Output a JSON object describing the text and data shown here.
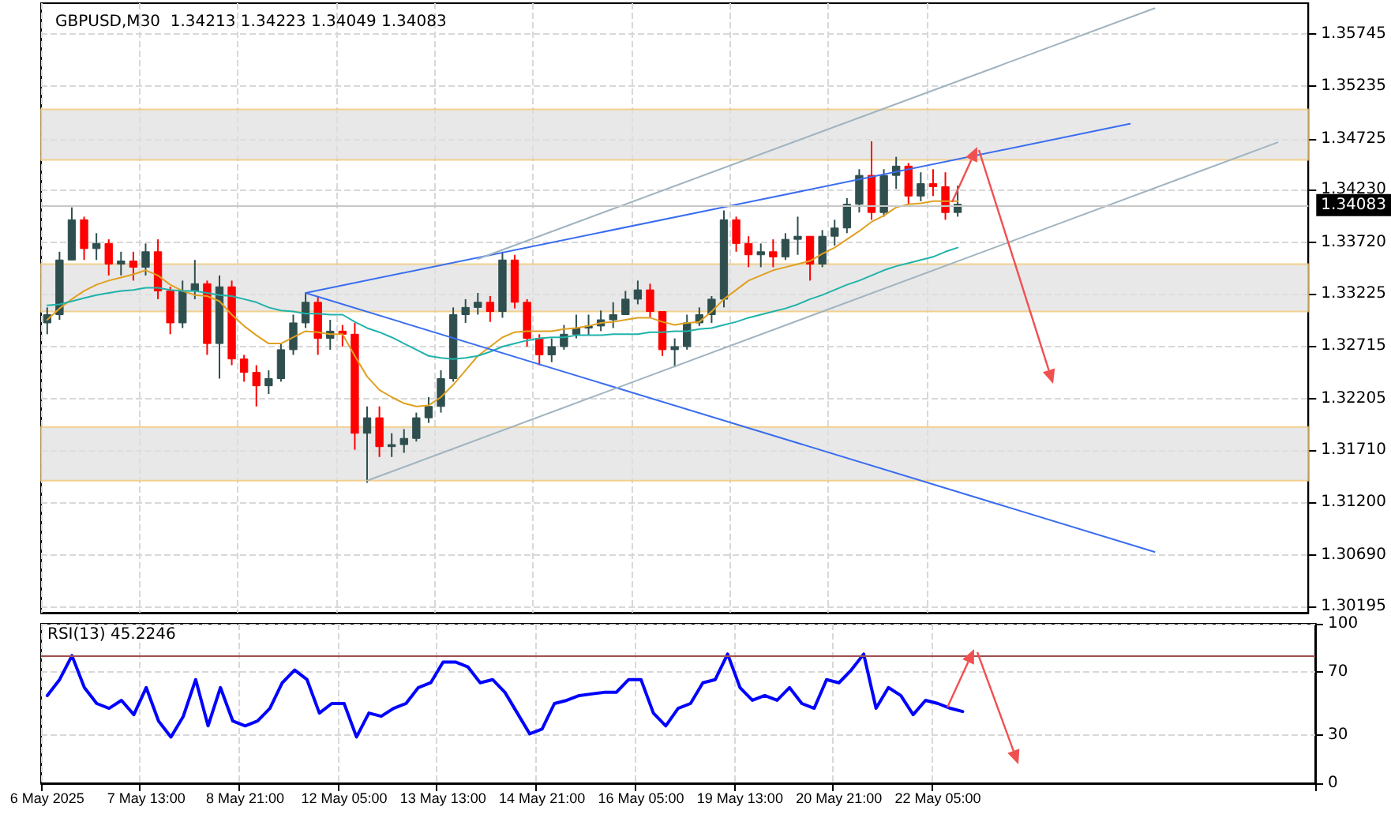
{
  "chart_data": [
    {
      "type": "candlestick",
      "title": "GBPUSD,M30  1.34213 1.34223 1.34049 1.34083",
      "tick_labels": "y",
      "grid": true,
      "marker": "none",
      "line_style": "solid",
      "categories": [
        null,
        null,
        null,
        null,
        null,
        null,
        null,
        null,
        null,
        null,
        null,
        null,
        null,
        null,
        null,
        null,
        null,
        null,
        null,
        null,
        null,
        null,
        null,
        null,
        null,
        null,
        null,
        null,
        null,
        null,
        null,
        null,
        null,
        null,
        null,
        null,
        null,
        null,
        null,
        null,
        null,
        null,
        null,
        null,
        null,
        null,
        null,
        null,
        null,
        null,
        null,
        null,
        null,
        null,
        null,
        null,
        null,
        null,
        null,
        null,
        null,
        null,
        null,
        null,
        null,
        null,
        null,
        null,
        null,
        null,
        null,
        null,
        null,
        null,
        null,
        null,
        null,
        null,
        null,
        null,
        null,
        null,
        null,
        null,
        null,
        null,
        null,
        null,
        null,
        null,
        null,
        null,
        null,
        null,
        null,
        null,
        null,
        null,
        null,
        null,
        null,
        null,
        null
      ],
      "ylim": [
        1.3013,
        1.3604
      ],
      "yticks": [
        1.30195,
        {
          "value": 1.3069,
          "label": "1.30690"
        },
        {
          "value": 1.312,
          "label": "1.31200"
        },
        {
          "value": 1.3171,
          "label": "1.31710"
        },
        1.32205,
        1.32715,
        1.33225,
        {
          "value": 1.3372,
          "label": "1.33720"
        },
        {
          "value": 1.3423,
          "label": "1.34230"
        },
        1.34725,
        1.35235,
        1.35745
      ],
      "series": [
        {
          "type": "candlestick",
          "colors": [
            "#2f4f4f",
            "#2f4f4f",
            "#2f4f4f",
            "#ff0000",
            "#2f4f4f",
            "#ff0000",
            "#2f4f4f",
            "#ff0000",
            "#2f4f4f",
            "#ff0000",
            "#ff0000",
            "#2f4f4f",
            "#2f4f4f",
            "#ff0000",
            "#2f4f4f",
            "#ff0000",
            "#ff0000",
            "#ff0000",
            "#2f4f4f",
            "#2f4f4f",
            "#2f4f4f",
            "#2f4f4f",
            "#ff0000",
            "#2f4f4f",
            "#ff0000",
            "#ff0000",
            "#2f4f4f",
            "#ff0000",
            "#2f4f4f",
            "#2f4f4f",
            "#2f4f4f",
            "#2f4f4f",
            "#2f4f4f",
            "#2f4f4f",
            "#2f4f4f",
            "#2f4f4f",
            "#ff0000",
            "#2f4f4f",
            "#ff0000",
            "#ff0000",
            "#ff0000",
            "#2f4f4f",
            "#2f4f4f",
            "#2f4f4f",
            "#2f4f4f",
            "#2f4f4f",
            "#2f4f4f",
            "#2f4f4f",
            "#2f4f4f",
            "#ff0000",
            "#ff0000",
            "#2f4f4f",
            "#2f4f4f",
            "#2f4f4f",
            "#2f4f4f",
            "#2f4f4f",
            "#ff0000",
            "#ff0000",
            "#2f4f4f",
            "#ff0000",
            "#2f4f4f",
            "#2f4f4f",
            "#ff0000",
            "#2f4f4f",
            "#2f4f4f",
            "#2f4f4f",
            "#2f4f4f",
            "#ff0000",
            "#2f4f4f",
            "#2f4f4f",
            "#ff0000",
            "#2f4f4f",
            "#ff0000",
            "#ff0000",
            "#2f4f4f",
            null,
            null,
            null,
            null,
            null,
            null,
            null,
            null,
            null,
            null,
            null,
            null,
            null,
            null,
            null,
            null,
            null,
            null,
            null,
            null,
            null,
            null,
            null,
            null,
            null,
            null,
            null,
            null
          ],
          "ohlc": [
            [
              1.3294,
              1.3309,
              1.3283,
              1.3302
            ],
            [
              1.3302,
              1.3363,
              1.3297,
              1.3355
            ],
            [
              1.3355,
              1.3406,
              1.3355,
              1.3394
            ],
            [
              1.3394,
              1.3397,
              1.3355,
              1.3366
            ],
            [
              1.3366,
              1.3381,
              1.3355,
              1.3371
            ],
            [
              1.3371,
              1.3375,
              1.334,
              1.3351
            ],
            [
              1.3351,
              1.3363,
              1.334,
              1.3354
            ],
            [
              1.3354,
              1.3363,
              1.3335,
              1.3348
            ],
            [
              1.3348,
              1.3371,
              1.334,
              1.3363
            ],
            [
              1.3363,
              1.3375,
              1.3317,
              1.3325
            ],
            [
              1.3325,
              1.3329,
              1.3283,
              1.3294
            ],
            [
              1.3294,
              1.3335,
              1.3289,
              1.3325
            ],
            [
              1.3325,
              1.3355,
              1.3317,
              1.3332
            ],
            [
              1.3332,
              1.3335,
              1.3263,
              1.3274
            ],
            [
              1.3274,
              1.334,
              1.324,
              1.3329
            ],
            [
              1.3329,
              1.3335,
              1.3253,
              1.3259
            ],
            [
              1.3259,
              1.3263,
              1.3237,
              1.3246
            ],
            [
              1.3246,
              1.3253,
              1.3213,
              1.3233
            ],
            [
              1.3233,
              1.3248,
              1.3225,
              1.324
            ],
            [
              1.324,
              1.3274,
              1.3237,
              1.3268
            ],
            [
              1.3268,
              1.3302,
              1.3263,
              1.3294
            ],
            [
              1.3294,
              1.3323,
              1.3289,
              1.3314
            ],
            [
              1.3314,
              1.332,
              1.3263,
              1.3279
            ],
            [
              1.3279,
              1.3297,
              1.3268,
              1.3286
            ],
            [
              1.3286,
              1.3292,
              1.3271,
              1.3283
            ],
            [
              1.3283,
              1.3294,
              1.3171,
              1.3187
            ],
            [
              1.3187,
              1.3213,
              1.3139,
              1.3202
            ],
            [
              1.3202,
              1.3213,
              1.3164,
              1.3174
            ],
            [
              1.3174,
              1.3187,
              1.3164,
              1.3176
            ],
            [
              1.3176,
              1.3191,
              1.3168,
              1.3182
            ],
            [
              1.3182,
              1.3207,
              1.3179,
              1.3202
            ],
            [
              1.3202,
              1.3222,
              1.3197,
              1.3213
            ],
            [
              1.3213,
              1.3248,
              1.3207,
              1.324
            ],
            [
              1.324,
              1.3309,
              1.3237,
              1.3302
            ],
            [
              1.3302,
              1.3317,
              1.3294,
              1.3309
            ],
            [
              1.3309,
              1.3323,
              1.3302,
              1.3314
            ],
            [
              1.3314,
              1.332,
              1.3295,
              1.3305
            ],
            [
              1.3305,
              1.3363,
              1.3299,
              1.3355
            ],
            [
              1.3355,
              1.336,
              1.3308,
              1.3314
            ],
            [
              1.3314,
              1.3317,
              1.3271,
              1.3279
            ],
            [
              1.3279,
              1.3283,
              1.3253,
              1.3263
            ],
            [
              1.3263,
              1.3279,
              1.3256,
              1.3271
            ],
            [
              1.3271,
              1.3292,
              1.3268,
              1.3283
            ],
            [
              1.3283,
              1.3302,
              1.3279,
              1.3289
            ],
            [
              1.3289,
              1.3302,
              1.3282,
              1.3291
            ],
            [
              1.3291,
              1.3306,
              1.3286,
              1.3297
            ],
            [
              1.3297,
              1.3314,
              1.3289,
              1.3302
            ],
            [
              1.3302,
              1.3325,
              1.3302,
              1.3317
            ],
            [
              1.3317,
              1.3335,
              1.3312,
              1.3326
            ],
            [
              1.3326,
              1.3332,
              1.3299,
              1.3305
            ],
            [
              1.3305,
              1.3305,
              1.3262,
              1.3268
            ],
            [
              1.3268,
              1.3279,
              1.3251,
              1.3271
            ],
            [
              1.3271,
              1.3302,
              1.3268,
              1.3294
            ],
            [
              1.3294,
              1.3309,
              1.3291,
              1.3302
            ],
            [
              1.3302,
              1.332,
              1.3294,
              1.3317
            ],
            [
              1.3317,
              1.3403,
              1.3309,
              1.3394
            ],
            [
              1.3394,
              1.3397,
              1.3363,
              1.3371
            ],
            [
              1.3371,
              1.3378,
              1.3348,
              1.336
            ],
            [
              1.336,
              1.3371,
              1.3348,
              1.3363
            ],
            [
              1.3363,
              1.3375,
              1.3348,
              1.3358
            ],
            [
              1.3358,
              1.3381,
              1.3355,
              1.3375
            ],
            [
              1.3375,
              1.3397,
              1.336,
              1.3378
            ],
            [
              1.3378,
              1.3378,
              1.3335,
              1.3351
            ],
            [
              1.3351,
              1.3384,
              1.3348,
              1.3378
            ],
            [
              1.3378,
              1.3394,
              1.3369,
              1.3386
            ],
            [
              1.3386,
              1.3415,
              1.3381,
              1.3409
            ],
            [
              1.3409,
              1.3443,
              1.3401,
              1.3437
            ],
            [
              1.3437,
              1.347,
              1.3394,
              1.3401
            ],
            [
              1.3401,
              1.3443,
              1.3397,
              1.3437
            ],
            [
              1.3437,
              1.3455,
              1.3424,
              1.3446
            ],
            [
              1.3446,
              1.3449,
              1.3409,
              1.3417
            ],
            [
              1.3417,
              1.344,
              1.3412,
              1.3429
            ],
            [
              1.3429,
              1.3443,
              1.3417,
              1.3426
            ],
            [
              1.3426,
              1.344,
              1.3394,
              1.3401
            ],
            [
              1.3401,
              1.3427,
              1.3397,
              1.3409
            ],
            null,
            null,
            null,
            null,
            null,
            null,
            null,
            null,
            null,
            null,
            null,
            null,
            null,
            null,
            null,
            null,
            null,
            null,
            null,
            null,
            null,
            null,
            null,
            null,
            null,
            null,
            null,
            null
          ]
        },
        {
          "type": "line",
          "color": "#e0a020",
          "values": [
            1.3297,
            1.3308,
            1.3317,
            1.3325,
            1.3331,
            1.3335,
            1.3338,
            1.3341,
            1.3345,
            1.334,
            1.3331,
            1.3325,
            1.3321,
            1.332,
            1.3315,
            1.3302,
            1.3291,
            1.3282,
            1.3274,
            1.3274,
            1.328,
            1.3286,
            1.3285,
            1.3283,
            1.3283,
            1.3262,
            1.3242,
            1.3229,
            1.3222,
            1.3216,
            1.3213,
            1.3214,
            1.3222,
            1.3234,
            1.3248,
            1.3262,
            1.3271,
            1.328,
            1.3285,
            1.3286,
            1.3286,
            1.3286,
            1.3288,
            1.3289,
            1.3291,
            1.3294,
            1.3295,
            1.3297,
            1.3299,
            1.3299,
            1.3295,
            1.3292,
            1.3294,
            1.3295,
            1.3305,
            1.3317,
            1.3326,
            1.3335,
            1.334,
            1.3345,
            1.3348,
            1.3351,
            1.3354,
            1.3361,
            1.3367,
            1.3375,
            1.3383,
            1.3392,
            1.3398,
            1.3406,
            1.3409,
            1.341,
            1.3412,
            1.3412,
            1.3412,
            null,
            null,
            null,
            null,
            null,
            null,
            null,
            null,
            null,
            null,
            null,
            null,
            null,
            null,
            null,
            null,
            null,
            null,
            null,
            null,
            null,
            null,
            null,
            null,
            null,
            null,
            null,
            null
          ]
        },
        {
          "type": "line",
          "color": "#20b2aa",
          "values": [
            1.3311,
            1.3312,
            1.3315,
            1.3318,
            1.3321,
            1.3323,
            1.3325,
            1.3326,
            1.3328,
            1.3328,
            1.3326,
            1.3325,
            1.3325,
            1.3323,
            1.3321,
            1.332,
            1.3317,
            1.3314,
            1.3309,
            1.3306,
            1.3305,
            1.3303,
            1.3303,
            1.3302,
            1.3302,
            1.3295,
            1.3289,
            1.3285,
            1.328,
            1.3274,
            1.3268,
            1.3262,
            1.326,
            1.3259,
            1.326,
            1.3262,
            1.3266,
            1.3271,
            1.3274,
            1.3277,
            1.3279,
            1.328,
            1.328,
            1.3282,
            1.3282,
            1.3282,
            1.3283,
            1.3283,
            1.3283,
            1.3285,
            1.3285,
            1.3286,
            1.3286,
            1.3288,
            1.3289,
            1.3292,
            1.3295,
            1.3299,
            1.3302,
            1.3305,
            1.3308,
            1.3312,
            1.3317,
            1.3321,
            1.3326,
            1.3331,
            1.3335,
            1.334,
            1.3345,
            1.3349,
            1.3352,
            1.3355,
            1.3358,
            1.3363,
            1.3367,
            null,
            null,
            null,
            null,
            null,
            null,
            null,
            null,
            null,
            null,
            null,
            null,
            null,
            null,
            null,
            null,
            null,
            null,
            null,
            null,
            null,
            null,
            null,
            null,
            null,
            null,
            null,
            null
          ]
        },
        {
          "type": "line",
          "color": "#3a6df0",
          "values": [
            null,
            null,
            null,
            null,
            null,
            null,
            null,
            null,
            null,
            null,
            null,
            null,
            null,
            null,
            null,
            null,
            null,
            null,
            null,
            null,
            null,
            1.3323,
            null,
            null,
            null,
            null,
            null,
            null,
            null,
            null,
            null,
            null,
            null,
            null,
            null,
            null,
            null,
            null,
            null,
            null,
            null,
            null,
            null,
            null,
            null,
            null,
            null,
            null,
            null,
            null,
            null,
            null,
            null,
            null,
            null,
            null,
            null,
            null,
            null,
            null,
            null,
            null,
            null,
            null,
            null,
            null,
            null,
            null,
            null,
            null,
            null,
            null,
            null,
            null,
            null,
            null,
            null,
            null,
            null,
            null,
            null,
            null,
            null,
            null,
            null,
            null,
            null,
            null,
            1.3487,
            null,
            null,
            null,
            null,
            null,
            null,
            null,
            null,
            null,
            null,
            null,
            null,
            null,
            null
          ]
        },
        {
          "type": "line",
          "color": "#3a6df0",
          "values": [
            null,
            null,
            null,
            null,
            null,
            null,
            null,
            null,
            null,
            null,
            null,
            null,
            null,
            null,
            null,
            null,
            null,
            null,
            null,
            null,
            null,
            1.3323,
            null,
            null,
            null,
            null,
            null,
            null,
            null,
            null,
            null,
            null,
            null,
            null,
            null,
            null,
            null,
            null,
            null,
            null,
            null,
            null,
            null,
            null,
            null,
            null,
            null,
            null,
            null,
            null,
            null,
            null,
            null,
            null,
            null,
            null,
            null,
            null,
            null,
            null,
            null,
            null,
            null,
            null,
            null,
            null,
            null,
            null,
            null,
            null,
            null,
            null,
            null,
            null,
            null,
            null,
            null,
            null,
            null,
            null,
            null,
            null,
            null,
            null,
            null,
            null,
            null,
            null,
            null,
            null,
            1.3072,
            null,
            null,
            null,
            null,
            null,
            null,
            null,
            null,
            null,
            null,
            null,
            null
          ]
        },
        {
          "type": "line",
          "color": "#a0b4c0",
          "values": [
            null,
            null,
            null,
            null,
            null,
            null,
            null,
            null,
            null,
            null,
            null,
            null,
            null,
            null,
            null,
            null,
            null,
            null,
            null,
            null,
            null,
            null,
            null,
            null,
            null,
            null,
            null,
            null,
            null,
            null,
            null,
            null,
            null,
            null,
            null,
            1.3356,
            null,
            null,
            null,
            null,
            null,
            null,
            null,
            null,
            null,
            null,
            null,
            null,
            null,
            null,
            null,
            null,
            null,
            null,
            null,
            null,
            null,
            null,
            null,
            null,
            null,
            null,
            null,
            null,
            null,
            null,
            null,
            null,
            null,
            null,
            null,
            null,
            null,
            null,
            null,
            null,
            null,
            null,
            null,
            null,
            null,
            null,
            null,
            null,
            null,
            null,
            null,
            null,
            null,
            null,
            1.3599,
            null,
            null,
            null,
            null,
            null,
            null,
            null,
            null,
            null,
            null,
            null,
            null
          ]
        },
        {
          "type": "line",
          "color": "#a0b4c0",
          "values": [
            null,
            null,
            null,
            null,
            null,
            null,
            null,
            null,
            null,
            null,
            null,
            null,
            null,
            null,
            null,
            null,
            null,
            null,
            null,
            null,
            null,
            null,
            null,
            null,
            null,
            null,
            1.3141,
            null,
            null,
            null,
            null,
            null,
            null,
            null,
            null,
            null,
            null,
            null,
            null,
            null,
            null,
            null,
            null,
            null,
            null,
            null,
            null,
            null,
            null,
            null,
            null,
            null,
            null,
            null,
            null,
            null,
            null,
            null,
            null,
            null,
            null,
            null,
            null,
            null,
            null,
            null,
            null,
            null,
            null,
            null,
            null,
            null,
            null,
            null,
            null,
            null,
            null,
            null,
            null,
            null,
            null,
            null,
            null,
            null,
            null,
            null,
            null,
            null,
            null,
            null,
            null,
            null,
            null,
            null,
            null,
            null,
            null,
            null,
            null,
            null,
            1.3469,
            null,
            null
          ]
        }
      ],
      "ref_lines": [
        {
          "axis": "y",
          "value": 1.34083,
          "label": "1.34083",
          "color": "#c8c8c8"
        }
      ],
      "bands": [
        {
          "axis": "y",
          "from": 1.3452,
          "to": 1.3501,
          "color": "#e0e0e0"
        },
        {
          "axis": "y",
          "from": 1.3305,
          "to": 1.3351,
          "color": "#e0e0e0"
        },
        {
          "axis": "y",
          "from": 1.3141,
          "to": 1.3193,
          "color": "#e0e0e0"
        }
      ]
    },
    {
      "type": "line",
      "annotations": [
        "RSI(13) 45.2246"
      ],
      "grid": true,
      "marker": "none",
      "line_style": "solid",
      "categories": [
        "6 May 2025",
        null,
        null,
        null,
        null,
        null,
        null,
        null,
        "7 May 13:00",
        null,
        null,
        null,
        null,
        null,
        null,
        null,
        "8 May 21:00",
        null,
        null,
        null,
        null,
        null,
        null,
        null,
        "12 May 05:00",
        null,
        null,
        null,
        null,
        null,
        null,
        null,
        "13 May 13:00",
        null,
        null,
        null,
        null,
        null,
        null,
        null,
        "14 May 21:00",
        null,
        null,
        null,
        null,
        null,
        null,
        null,
        "16 May 05:00",
        null,
        null,
        null,
        null,
        null,
        null,
        null,
        "19 May 13:00",
        null,
        null,
        null,
        null,
        null,
        null,
        null,
        "20 May 21:00",
        null,
        null,
        null,
        null,
        null,
        null,
        null,
        "22 May 05:00",
        null,
        null,
        null,
        null,
        null,
        null,
        null,
        null,
        null,
        null,
        null,
        null,
        null,
        null,
        null,
        null,
        null,
        null,
        null,
        null,
        null,
        null,
        null,
        null,
        null,
        null,
        null,
        null,
        null,
        null
      ],
      "ylim": [
        0,
        100
      ],
      "yticks": [
        0,
        30,
        70,
        100
      ],
      "series": [
        {
          "color": "#0000ff",
          "values": [
            55,
            65,
            80,
            60,
            50,
            47,
            52,
            43,
            60,
            39,
            29,
            42,
            65,
            36,
            60,
            39,
            36,
            39,
            47,
            63,
            71,
            65,
            44,
            50,
            50,
            29,
            44,
            42,
            47,
            50,
            60,
            63,
            76,
            76,
            73,
            63,
            65,
            57,
            44,
            31,
            34,
            50,
            52,
            55,
            56,
            57,
            57,
            65,
            65,
            44,
            36,
            47,
            50,
            63,
            65,
            81,
            60,
            52,
            55,
            52,
            60,
            50,
            47,
            65,
            63,
            71,
            81,
            47,
            60,
            55,
            43,
            52,
            50,
            47,
            45,
            null,
            null,
            null,
            null,
            null,
            null,
            null,
            null,
            null,
            null,
            null,
            null,
            null,
            null,
            null,
            null,
            null,
            null,
            null,
            null,
            null,
            null,
            null,
            null,
            null,
            null,
            null,
            null
          ]
        }
      ],
      "ref_lines": [
        {
          "axis": "y",
          "value": 80,
          "color": "#a05050"
        }
      ]
    }
  ]
}
